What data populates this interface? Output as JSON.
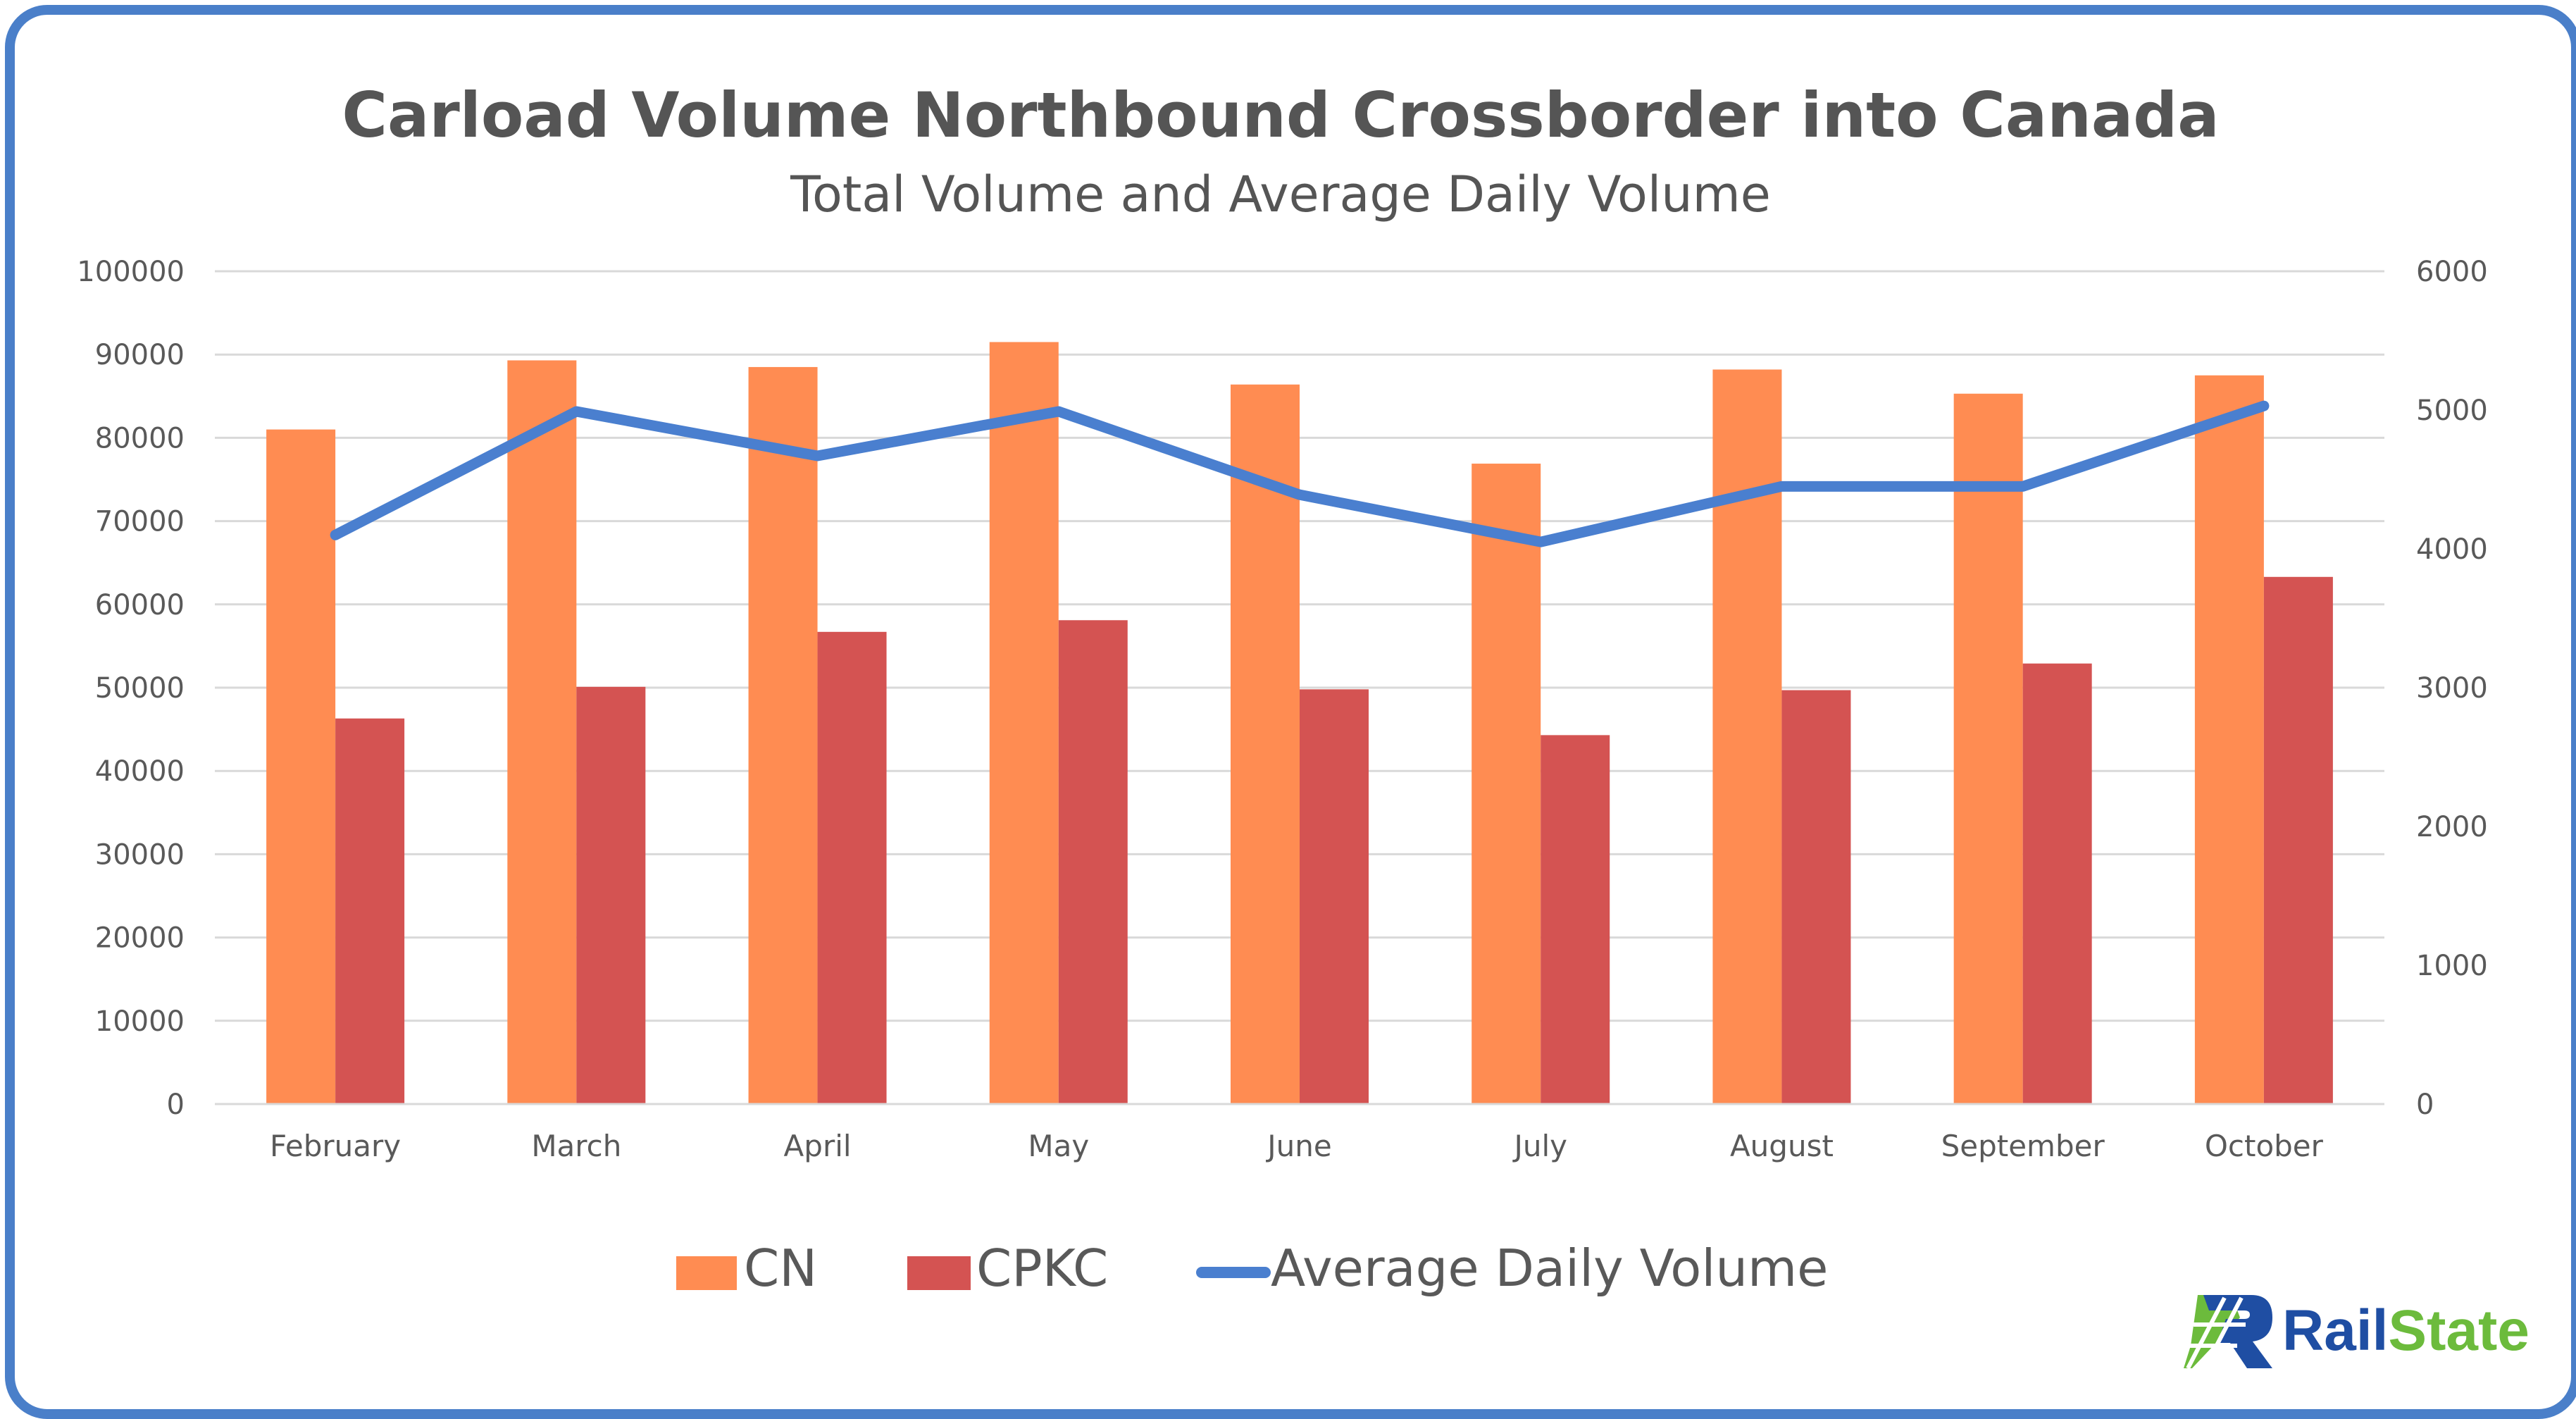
{
  "chart_data": {
    "type": "bar",
    "title": "Carload Volume Northbound Crossborder into Canada",
    "subtitle": "Total Volume and Average Daily Volume",
    "categories": [
      "February",
      "March",
      "April",
      "May",
      "June",
      "July",
      "August",
      "September",
      "October"
    ],
    "series": [
      {
        "name": "CN",
        "type": "bar",
        "axis": "left",
        "color": "#ff8c52",
        "values": [
          81000,
          89300,
          88500,
          91500,
          86400,
          76900,
          88200,
          85300,
          87500
        ]
      },
      {
        "name": "CPKC",
        "type": "bar",
        "axis": "left",
        "color": "#d45352",
        "values": [
          46300,
          50100,
          56700,
          58100,
          49800,
          44300,
          49700,
          52900,
          63300
        ]
      },
      {
        "name": "Average Daily Volume",
        "type": "line",
        "axis": "right",
        "color": "#4a7fcf",
        "values": [
          4100,
          4990,
          4670,
          4990,
          4390,
          4050,
          4450,
          4450,
          5030
        ]
      }
    ],
    "y_left": {
      "min": 0,
      "max": 100000,
      "ticks": [
        "0",
        "10000",
        "20000",
        "30000",
        "40000",
        "50000",
        "60000",
        "70000",
        "80000",
        "90000",
        "100000"
      ]
    },
    "y_right": {
      "min": 0,
      "max": 6000,
      "ticks": [
        "0",
        "1000",
        "2000",
        "3000",
        "4000",
        "5000",
        "6000"
      ]
    },
    "grid": true,
    "legend_position": "bottom"
  },
  "logo": {
    "text_part1": "Rail",
    "text_part2": "State",
    "color1": "#1f4ea3",
    "color2": "#6cbb3c"
  },
  "frame_color": "#4a7fc9"
}
